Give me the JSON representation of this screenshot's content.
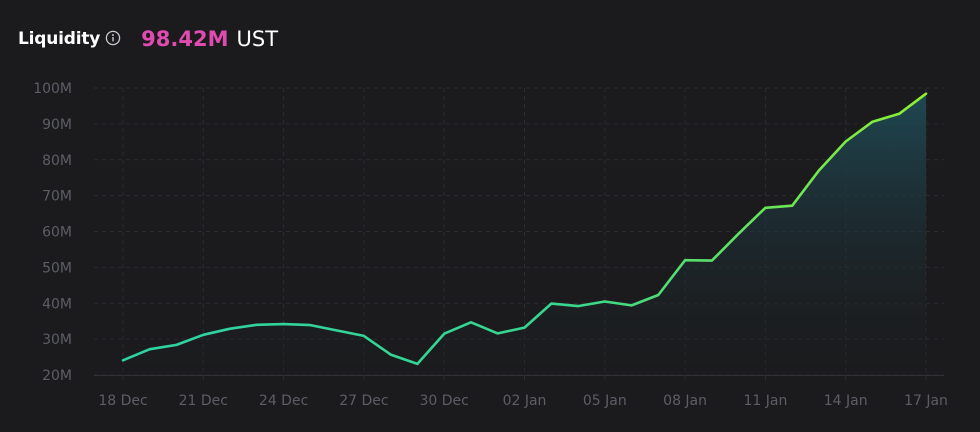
{
  "header": {
    "title": "Liquidity",
    "value": "98.42M",
    "unit": "UST"
  },
  "colors": {
    "background": "#1b1b1d",
    "value": "#e04bb0",
    "line_start": "#2ed3a3",
    "line_end": "#8ef02f",
    "grid": "#2b2b30",
    "tick": "#5d5d66"
  },
  "chart_data": {
    "type": "area",
    "title": "Liquidity",
    "x_tick_labels": [
      "18 Dec",
      "21 Dec",
      "24 Dec",
      "27 Dec",
      "30 Dec",
      "02 Jan",
      "05 Jan",
      "08 Jan",
      "11 Jan",
      "14 Jan",
      "17 Jan"
    ],
    "y_tick_labels": [
      "20M",
      "30M",
      "40M",
      "50M",
      "60M",
      "70M",
      "80M",
      "90M",
      "100M"
    ],
    "ylim": [
      20,
      100
    ],
    "y_ticks": [
      20,
      30,
      40,
      50,
      60,
      70,
      80,
      90,
      100
    ],
    "y_unit": "M UST",
    "grid": true,
    "series": [
      {
        "dates": [
          "18 Dec",
          "19 Dec",
          "20 Dec",
          "21 Dec",
          "22 Dec",
          "23 Dec",
          "24 Dec",
          "25 Dec",
          "26 Dec",
          "27 Dec",
          "28 Dec",
          "29 Dec",
          "30 Dec",
          "31 Dec",
          "01 Jan",
          "02 Jan",
          "03 Jan",
          "04 Jan",
          "05 Jan",
          "06 Jan",
          "07 Jan",
          "08 Jan",
          "09 Jan",
          "10 Jan",
          "11 Jan",
          "12 Jan",
          "13 Jan",
          "14 Jan",
          "15 Jan",
          "16 Jan",
          "17 Jan"
        ],
        "values": [
          24.1,
          27.2,
          28.4,
          31.2,
          32.9,
          34.0,
          34.2,
          33.9,
          32.4,
          30.9,
          25.7,
          23.1,
          31.5,
          34.7,
          31.6,
          33.2,
          39.9,
          39.2,
          40.5,
          39.4,
          42.3,
          52.0,
          51.9,
          59.4,
          66.6,
          67.2,
          77.0,
          85.1,
          90.6,
          92.8,
          98.4
        ]
      }
    ]
  }
}
